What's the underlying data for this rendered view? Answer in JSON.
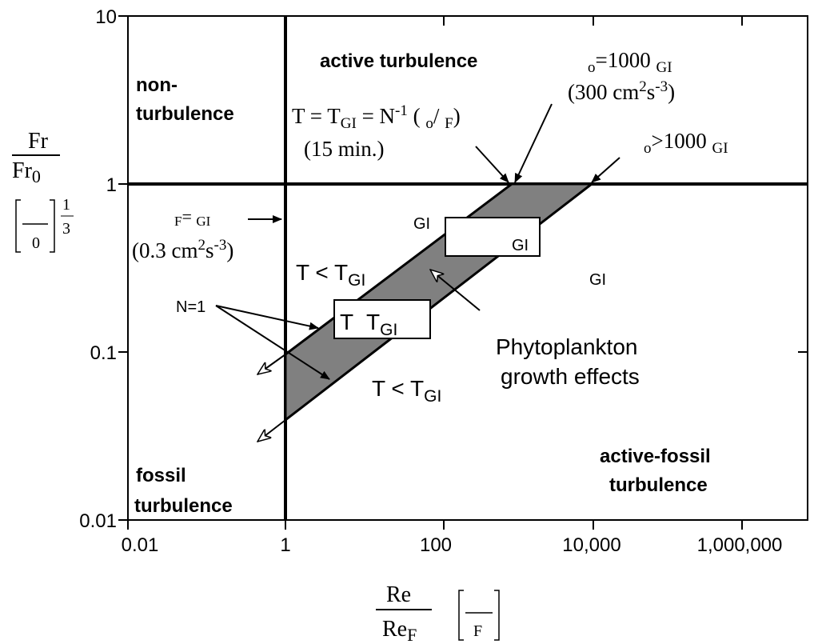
{
  "axes": {
    "x_ticks": [
      "0.01",
      "1",
      "100",
      "10,000",
      "1,000,000"
    ],
    "y_ticks": [
      "10",
      "1",
      "0.1",
      "0.01"
    ],
    "x_label": {
      "numerator": "Re",
      "denominator": "Re",
      "denominator_sub": "F",
      "bracket_sub": "F"
    },
    "y_label": {
      "numerator": "Fr",
      "denominator": "Fr",
      "denominator_sub": "0",
      "bracket_sub": "0",
      "exponent_num": "1",
      "exponent_den": "3"
    }
  },
  "regions": {
    "active": "active turbulence",
    "non_1": "non-",
    "non_2": "turbulence",
    "fossil_1": "fossil",
    "fossil_2": "turbulence",
    "active_fossil_1": "active-fossil",
    "active_fossil_2": "turbulence"
  },
  "annotations": {
    "eq": {
      "a": "T = T",
      "b": "GI",
      "c": " = N",
      "d": "-1",
      "e": " ( ",
      "f": "o",
      "g": "/ ",
      "h": "F",
      "i": ")"
    },
    "eq_time": "(15 min.)",
    "eps1": {
      "a": "o",
      "b": "=1000 ",
      "c": "GI"
    },
    "eps1_val": {
      "a": "(300 cm",
      "b": "2",
      "c": "s",
      "d": "-3",
      "e": ")"
    },
    "eps2": {
      "a": "o",
      "b": ">1000 ",
      "c": "GI"
    },
    "epsF": {
      "a": "F",
      "b": "= ",
      "c": "GI"
    },
    "epsF_val": {
      "a": "(0.3 cm",
      "b": "2",
      "c": "s",
      "d": "-3",
      "e": ")"
    },
    "t_lt_1": {
      "a": "T < T",
      "b": "GI"
    },
    "t_lt_2": {
      "a": "T < T",
      "b": "GI"
    },
    "box1": {
      "a": "T",
      "b": "T",
      "c": "GI"
    },
    "box2": "GI",
    "gi_1": "GI",
    "gi_2": "GI",
    "n1": "N=1",
    "phyto_1": "Phytoplankton",
    "phyto_2": "growth effects"
  }
}
